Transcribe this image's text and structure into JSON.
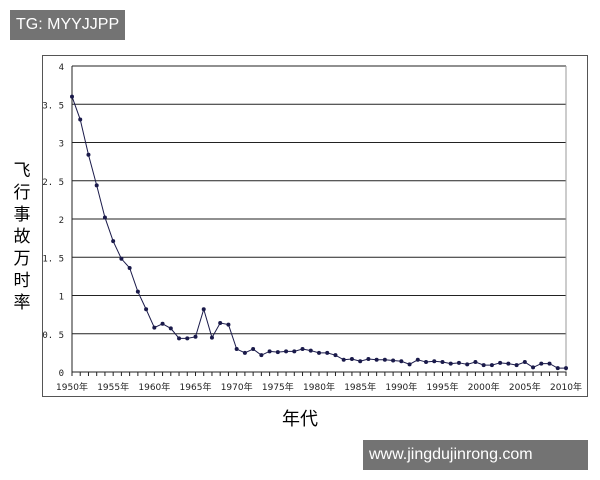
{
  "watermark_top": "TG: MYYJJPP",
  "watermark_bottom": "www.jingdujinrong.com",
  "chart_data": {
    "type": "line",
    "title": "",
    "ylabel": "飞行事故万时率",
    "xlabel": "年代",
    "ylim": [
      0,
      4
    ],
    "xlim": [
      1950,
      2010
    ],
    "yticks": [
      "0",
      "0. 5",
      "1",
      "1. 5",
      "2",
      "2. 5",
      "3",
      "3. 5",
      "4"
    ],
    "xticks": [
      "1950年",
      "1955年",
      "1960年",
      "1965年",
      "1970年",
      "1975年",
      "1980年",
      "1985年",
      "1990年",
      "1995年",
      "2000年",
      "2005年",
      "2010年"
    ],
    "grid": "horizontal",
    "line_color": "#1a1a4a",
    "x": [
      1950,
      1951,
      1952,
      1953,
      1954,
      1955,
      1956,
      1957,
      1958,
      1959,
      1960,
      1961,
      1962,
      1963,
      1964,
      1965,
      1966,
      1967,
      1968,
      1969,
      1970,
      1971,
      1972,
      1973,
      1974,
      1975,
      1976,
      1977,
      1978,
      1979,
      1980,
      1981,
      1982,
      1983,
      1984,
      1985,
      1986,
      1987,
      1988,
      1989,
      1990,
      1991,
      1992,
      1993,
      1994,
      1995,
      1996,
      1997,
      1998,
      1999,
      2000,
      2001,
      2002,
      2003,
      2004,
      2005,
      2006,
      2007,
      2008,
      2009,
      2010
    ],
    "values": [
      3.6,
      3.3,
      2.84,
      2.44,
      2.02,
      1.71,
      1.48,
      1.36,
      1.05,
      0.82,
      0.58,
      0.63,
      0.57,
      0.44,
      0.44,
      0.46,
      0.82,
      0.45,
      0.64,
      0.62,
      0.3,
      0.25,
      0.3,
      0.22,
      0.27,
      0.26,
      0.27,
      0.27,
      0.3,
      0.28,
      0.25,
      0.25,
      0.22,
      0.16,
      0.17,
      0.14,
      0.17,
      0.16,
      0.16,
      0.15,
      0.14,
      0.1,
      0.16,
      0.13,
      0.14,
      0.13,
      0.11,
      0.12,
      0.1,
      0.13,
      0.09,
      0.09,
      0.12,
      0.11,
      0.09,
      0.13,
      0.06,
      0.11,
      0.11,
      0.05,
      0.05
    ]
  }
}
